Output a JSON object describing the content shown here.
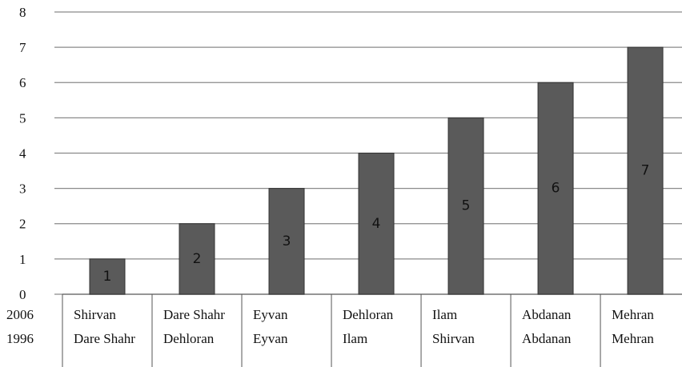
{
  "chart_data": {
    "type": "bar",
    "category_rows": [
      {
        "label": "2006",
        "names": [
          "Shirvan",
          "Dare Shahr",
          "Eyvan",
          "Dehloran",
          "Ilam",
          "Abdanan",
          "Mehran"
        ]
      },
      {
        "label": "1996",
        "names": [
          "Dare Shahr",
          "Dehloran",
          "Eyvan",
          "Ilam",
          "Shirvan",
          "Abdanan",
          "Mehran"
        ]
      }
    ],
    "values": [
      1,
      2,
      3,
      4,
      5,
      6,
      7
    ],
    "color": "#5a5a5a",
    "ylim": [
      0,
      8
    ],
    "yticks": [
      0,
      1,
      2,
      3,
      4,
      5,
      6,
      7,
      8
    ],
    "grid": true
  }
}
